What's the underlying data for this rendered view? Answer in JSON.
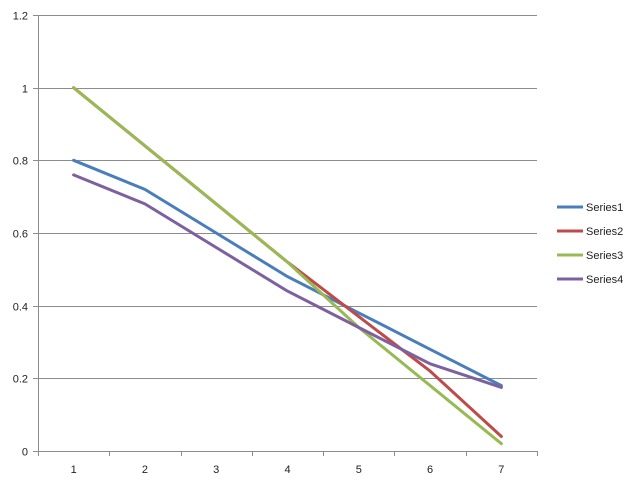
{
  "chart_data": {
    "type": "line",
    "categories": [
      "1",
      "2",
      "3",
      "4",
      "5",
      "6",
      "7"
    ],
    "series": [
      {
        "name": "Series1",
        "color": "#4a7ebb",
        "values": [
          0.8,
          0.72,
          0.6,
          0.48,
          0.38,
          0.28,
          0.18
        ]
      },
      {
        "name": "Series2",
        "color": "#be4b48",
        "values": [
          1.0,
          0.84,
          0.68,
          0.52,
          0.37,
          0.22,
          0.04
        ]
      },
      {
        "name": "Series3",
        "color": "#98b954",
        "values": [
          1.0,
          0.84,
          0.68,
          0.52,
          0.34,
          0.18,
          0.02
        ]
      },
      {
        "name": "Series4",
        "color": "#7d60a0",
        "values": [
          0.76,
          0.68,
          0.56,
          0.44,
          0.34,
          0.24,
          0.175
        ]
      }
    ],
    "yticks": [
      "0",
      "0.2",
      "0.4",
      "0.6",
      "0.8",
      "1",
      "1.2"
    ],
    "ylim": [
      0,
      1.2
    ],
    "grid": true,
    "legend": "right"
  }
}
